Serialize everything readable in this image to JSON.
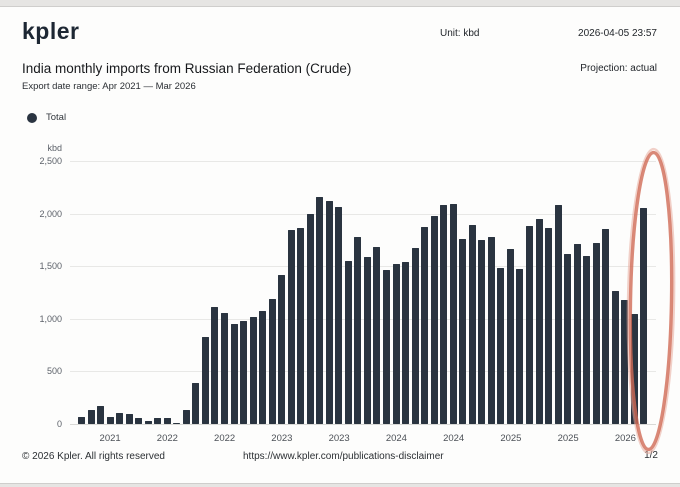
{
  "header": {
    "logo": "kpler",
    "unit_label": "Unit: kbd",
    "datetime": "2026-04-05 23:57",
    "title": "India monthly imports from Russian Federation (Crude)",
    "subtitle": "Export date range: Apr 2021 — Mar 2026",
    "projection": "Projection: actual"
  },
  "legend": {
    "items": [
      {
        "label": "Total",
        "color": "#2a3441"
      }
    ]
  },
  "chart_data": {
    "type": "bar",
    "title": "India monthly imports from Russian Federation (Crude)",
    "unit": "kbd",
    "ylabel": "kbd",
    "ylim": [
      0,
      2500
    ],
    "yticks": [
      0,
      500,
      1000,
      1500,
      2000,
      2500
    ],
    "ytick_labels": [
      "0",
      "500",
      "1,000",
      "1,500",
      "2,000",
      "2,500"
    ],
    "grid": true,
    "legend_position": "top-left",
    "bar_color": "#2a3440",
    "categories": [
      "Apr 2021",
      "May 2021",
      "Jun 2021",
      "Jul 2021",
      "Aug 2021",
      "Sep 2021",
      "Oct 2021",
      "Nov 2021",
      "Dec 2021",
      "Jan 2022",
      "Feb 2022",
      "Mar 2022",
      "Apr 2022",
      "May 2022",
      "Jun 2022",
      "Jul 2022",
      "Aug 2022",
      "Sep 2022",
      "Oct 2022",
      "Nov 2022",
      "Dec 2022",
      "Jan 2023",
      "Feb 2023",
      "Mar 2023",
      "Apr 2023",
      "May 2023",
      "Jun 2023",
      "Jul 2023",
      "Aug 2023",
      "Sep 2023",
      "Oct 2023",
      "Nov 2023",
      "Dec 2023",
      "Jan 2024",
      "Feb 2024",
      "Mar 2024",
      "Apr 2024",
      "May 2024",
      "Jun 2024",
      "Jul 2024",
      "Aug 2024",
      "Sep 2024",
      "Oct 2024",
      "Nov 2024",
      "Dec 2024",
      "Jan 2025",
      "Feb 2025",
      "Mar 2025",
      "Apr 2025",
      "May 2025",
      "Jun 2025",
      "Jul 2025",
      "Aug 2025",
      "Sep 2025",
      "Oct 2025",
      "Nov 2025",
      "Dec 2025",
      "Jan 2026",
      "Feb 2026",
      "Mar 2026"
    ],
    "series": [
      {
        "name": "Total",
        "values": [
          70,
          135,
          175,
          70,
          100,
          95,
          55,
          25,
          55,
          55,
          10,
          135,
          390,
          830,
          1115,
          1055,
          950,
          980,
          1020,
          1070,
          1190,
          1420,
          1845,
          1860,
          2000,
          2160,
          2120,
          2060,
          1550,
          1780,
          1590,
          1680,
          1460,
          1525,
          1540,
          1670,
          1870,
          1975,
          2080,
          2090,
          1760,
          1890,
          1750,
          1780,
          1480,
          1660,
          1470,
          1880,
          1950,
          1860,
          2080,
          1620,
          1710,
          1600,
          1720,
          1850,
          1260,
          1180,
          1050,
          2050
        ]
      }
    ],
    "x_ticks": [
      {
        "index": 3,
        "label": "2021"
      },
      {
        "index": 9,
        "label": "2022"
      },
      {
        "index": 15,
        "label": "2022"
      },
      {
        "index": 21,
        "label": "2023"
      },
      {
        "index": 27,
        "label": "2023"
      },
      {
        "index": 33,
        "label": "2024"
      },
      {
        "index": 39,
        "label": "2024"
      },
      {
        "index": 45,
        "label": "2025"
      },
      {
        "index": 51,
        "label": "2025"
      },
      {
        "index": 57,
        "label": "2026"
      }
    ],
    "annotation": {
      "shape": "ellipse",
      "highlights": "Mar 2026",
      "color": "#cf6a55"
    }
  },
  "footer": {
    "copyright": "© 2026 Kpler. All rights reserved",
    "disclaimer_url": "https://www.kpler.com/publications-disclaimer",
    "page": "1/2"
  }
}
